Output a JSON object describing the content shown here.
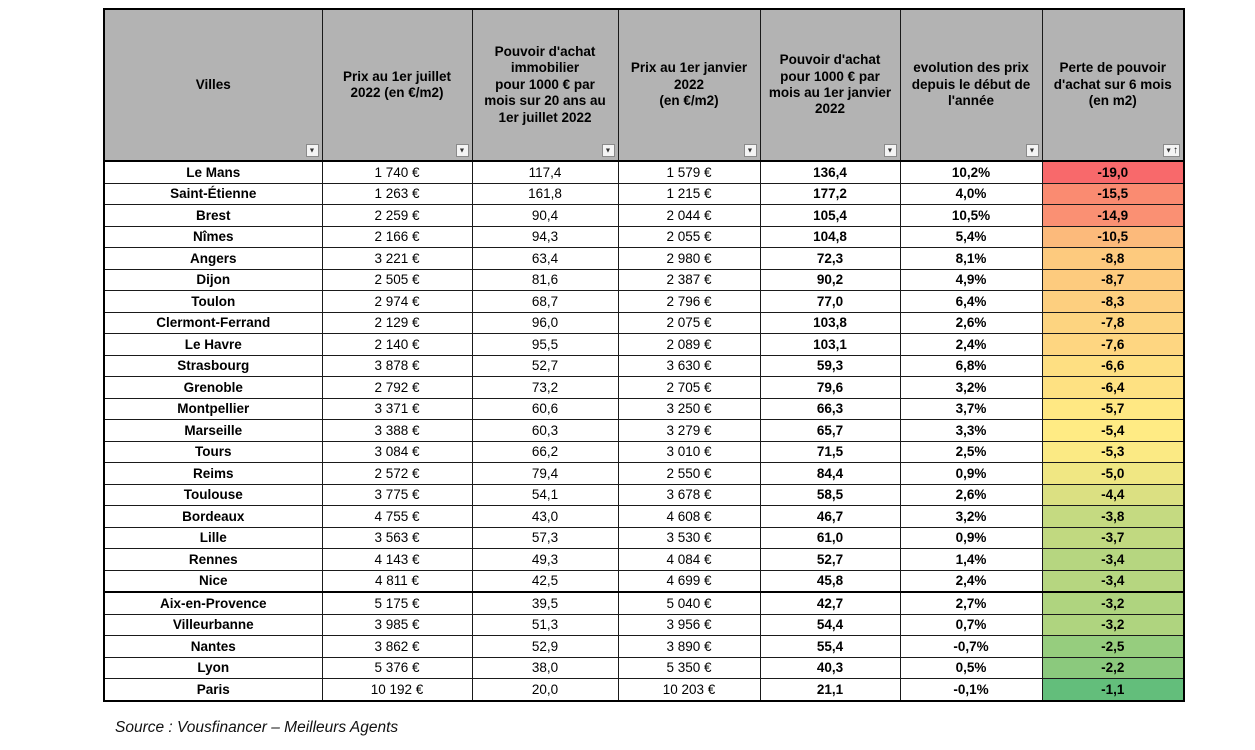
{
  "table": {
    "columns": [
      {
        "label": "Villes",
        "sorted": false
      },
      {
        "label": "Prix au 1er juillet\n2022 (en €/m2)",
        "sorted": false
      },
      {
        "label": "Pouvoir d'achat\nimmobilier\npour 1000 € par\nmois sur 20 ans au\n1er juillet 2022",
        "sorted": false
      },
      {
        "label": "Prix au 1er janvier\n2022\n(en €/m2)",
        "sorted": false
      },
      {
        "label": "Pouvoir d'achat\npour 1000 € par\nmois au 1er janvier\n2022",
        "sorted": false
      },
      {
        "label": "evolution des prix\ndepuis le début de\nl'année",
        "sorted": false
      },
      {
        "label": "Perte de pouvoir\nd'achat sur 6 mois\n(en m2)",
        "sorted": true
      }
    ],
    "filter_icon": "▼",
    "sort_ascending_icon": "↑",
    "rows": [
      {
        "ville": "Le Mans",
        "prix_juillet": "1 740 €",
        "pouvoir_juillet": "117,4",
        "prix_janvier": "1 579 €",
        "pouvoir_janvier": "136,4",
        "evolution": "10,2%",
        "perte": "-19,0",
        "perte_color": "#F8696B",
        "separator_below": false
      },
      {
        "ville": "Saint-Étienne",
        "prix_juillet": "1 263 €",
        "pouvoir_juillet": "161,8",
        "prix_janvier": "1 215 €",
        "pouvoir_janvier": "177,2",
        "evolution": "4,0%",
        "perte": "-15,5",
        "perte_color": "#FA8B71",
        "separator_below": false
      },
      {
        "ville": "Brest",
        "prix_juillet": "2 259 €",
        "pouvoir_juillet": "90,4",
        "prix_janvier": "2 044 €",
        "pouvoir_janvier": "105,4",
        "evolution": "10,5%",
        "perte": "-14,9",
        "perte_color": "#FA9073",
        "separator_below": false
      },
      {
        "ville": "Nîmes",
        "prix_juillet": "2 166 €",
        "pouvoir_juillet": "94,3",
        "prix_janvier": "2 055 €",
        "pouvoir_janvier": "104,8",
        "evolution": "5,4%",
        "perte": "-10,5",
        "perte_color": "#FCBA7B",
        "separator_below": false
      },
      {
        "ville": "Angers",
        "prix_juillet": "3 221 €",
        "pouvoir_juillet": "63,4",
        "prix_janvier": "2 980 €",
        "pouvoir_janvier": "72,3",
        "evolution": "8,1%",
        "perte": "-8,8",
        "perte_color": "#FDCA7E",
        "separator_below": false
      },
      {
        "ville": "Dijon",
        "prix_juillet": "2 505 €",
        "pouvoir_juillet": "81,6",
        "prix_janvier": "2 387 €",
        "pouvoir_janvier": "90,2",
        "evolution": "4,9%",
        "perte": "-8,7",
        "perte_color": "#FDCB7E",
        "separator_below": false
      },
      {
        "ville": "Toulon",
        "prix_juillet": "2 974 €",
        "pouvoir_juillet": "68,7",
        "prix_janvier": "2 796 €",
        "pouvoir_janvier": "77,0",
        "evolution": "6,4%",
        "perte": "-8,3",
        "perte_color": "#FDCF7F",
        "separator_below": false
      },
      {
        "ville": "Clermont-Ferrand",
        "prix_juillet": "2 129 €",
        "pouvoir_juillet": "96,0",
        "prix_janvier": "2 075 €",
        "pouvoir_janvier": "103,8",
        "evolution": "2,6%",
        "perte": "-7,8",
        "perte_color": "#FDD480",
        "separator_below": false
      },
      {
        "ville": "Le Havre",
        "prix_juillet": "2 140 €",
        "pouvoir_juillet": "95,5",
        "prix_janvier": "2 089 €",
        "pouvoir_janvier": "103,1",
        "evolution": "2,4%",
        "perte": "-7,6",
        "perte_color": "#FED681",
        "separator_below": false
      },
      {
        "ville": "Strasbourg",
        "prix_juillet": "3 878 €",
        "pouvoir_juillet": "52,7",
        "prix_janvier": "3 630 €",
        "pouvoir_janvier": "59,3",
        "evolution": "6,8%",
        "perte": "-6,6",
        "perte_color": "#FEDF82",
        "separator_below": false
      },
      {
        "ville": "Grenoble",
        "prix_juillet": "2 792 €",
        "pouvoir_juillet": "73,2",
        "prix_janvier": "2 705 €",
        "pouvoir_janvier": "79,6",
        "evolution": "3,2%",
        "perte": "-6,4",
        "perte_color": "#FEE182",
        "separator_below": false
      },
      {
        "ville": "Montpellier",
        "prix_juillet": "3 371 €",
        "pouvoir_juillet": "60,6",
        "prix_janvier": "3 250 €",
        "pouvoir_janvier": "66,3",
        "evolution": "3,7%",
        "perte": "-5,7",
        "perte_color": "#FFE883",
        "separator_below": false
      },
      {
        "ville": "Marseille",
        "prix_juillet": "3 388 €",
        "pouvoir_juillet": "60,3",
        "prix_janvier": "3 279 €",
        "pouvoir_janvier": "65,7",
        "evolution": "3,3%",
        "perte": "-5,4",
        "perte_color": "#FFEB84",
        "separator_below": false
      },
      {
        "ville": "Tours",
        "prix_juillet": "3 084 €",
        "pouvoir_juillet": "66,2",
        "prix_janvier": "3 010 €",
        "pouvoir_janvier": "71,5",
        "evolution": "2,5%",
        "perte": "-5,3",
        "perte_color": "#FBEA84",
        "separator_below": false
      },
      {
        "ville": "Reims",
        "prix_juillet": "2 572 €",
        "pouvoir_juillet": "79,4",
        "prix_janvier": "2 550 €",
        "pouvoir_janvier": "84,4",
        "evolution": "0,9%",
        "perte": "-5,0",
        "perte_color": "#F0E783",
        "separator_below": false
      },
      {
        "ville": "Toulouse",
        "prix_juillet": "3 775 €",
        "pouvoir_juillet": "54,1",
        "prix_janvier": "3 678 €",
        "pouvoir_janvier": "58,5",
        "evolution": "2,6%",
        "perte": "-4,4",
        "perte_color": "#DBE082",
        "separator_below": false
      },
      {
        "ville": "Bordeaux",
        "prix_juillet": "4 755 €",
        "pouvoir_juillet": "43,0",
        "prix_janvier": "4 608 €",
        "pouvoir_janvier": "46,7",
        "evolution": "3,2%",
        "perte": "-3,8",
        "perte_color": "#C5DA81",
        "separator_below": false
      },
      {
        "ville": "Lille",
        "prix_juillet": "3 563 €",
        "pouvoir_juillet": "57,3",
        "prix_janvier": "3 530 €",
        "pouvoir_janvier": "61,0",
        "evolution": "0,9%",
        "perte": "-3,7",
        "perte_color": "#C1D980",
        "separator_below": false
      },
      {
        "ville": "Rennes",
        "prix_juillet": "4 143 €",
        "pouvoir_juillet": "49,3",
        "prix_janvier": "4 084 €",
        "pouvoir_janvier": "52,7",
        "evolution": "1,4%",
        "perte": "-3,4",
        "perte_color": "#B6D680",
        "separator_below": false
      },
      {
        "ville": "Nice",
        "prix_juillet": "4 811 €",
        "pouvoir_juillet": "42,5",
        "prix_janvier": "4 699 €",
        "pouvoir_janvier": "45,8",
        "evolution": "2,4%",
        "perte": "-3,4",
        "perte_color": "#B6D680",
        "separator_below": true
      },
      {
        "ville": "Aix-en-Provence",
        "prix_juillet": "5 175 €",
        "pouvoir_juillet": "39,5",
        "prix_janvier": "5 040 €",
        "pouvoir_janvier": "42,7",
        "evolution": "2,7%",
        "perte": "-3,2",
        "perte_color": "#AFD47F",
        "separator_below": false
      },
      {
        "ville": "Villeurbanne",
        "prix_juillet": "3 985 €",
        "pouvoir_juillet": "51,3",
        "prix_janvier": "3 956 €",
        "pouvoir_janvier": "54,4",
        "evolution": "0,7%",
        "perte": "-3,2",
        "perte_color": "#AFD47F",
        "separator_below": false
      },
      {
        "ville": "Nantes",
        "prix_juillet": "3 862 €",
        "pouvoir_juillet": "52,9",
        "prix_janvier": "3 890 €",
        "pouvoir_janvier": "55,4",
        "evolution": "-0,7%",
        "perte": "-2,5",
        "perte_color": "#96CD7E",
        "separator_below": false
      },
      {
        "ville": "Lyon",
        "prix_juillet": "5 376 €",
        "pouvoir_juillet": "38,0",
        "prix_janvier": "5 350 €",
        "pouvoir_janvier": "40,3",
        "evolution": "0,5%",
        "perte": "-2,2",
        "perte_color": "#8BC97D",
        "separator_below": false
      },
      {
        "ville": "Paris",
        "prix_juillet": "10 192 €",
        "pouvoir_juillet": "20,0",
        "prix_janvier": "10 203 €",
        "pouvoir_janvier": "21,1",
        "evolution": "-0,1%",
        "perte": "-1,1",
        "perte_color": "#63BE7B",
        "separator_below": false
      }
    ]
  },
  "colors": {
    "header_bg": "#b3b3b3",
    "scale_red": "#F8696B",
    "scale_yellow": "#FFEB84",
    "scale_green": "#63BE7B"
  },
  "source": "Source : Vousfinancer – Meilleurs Agents"
}
